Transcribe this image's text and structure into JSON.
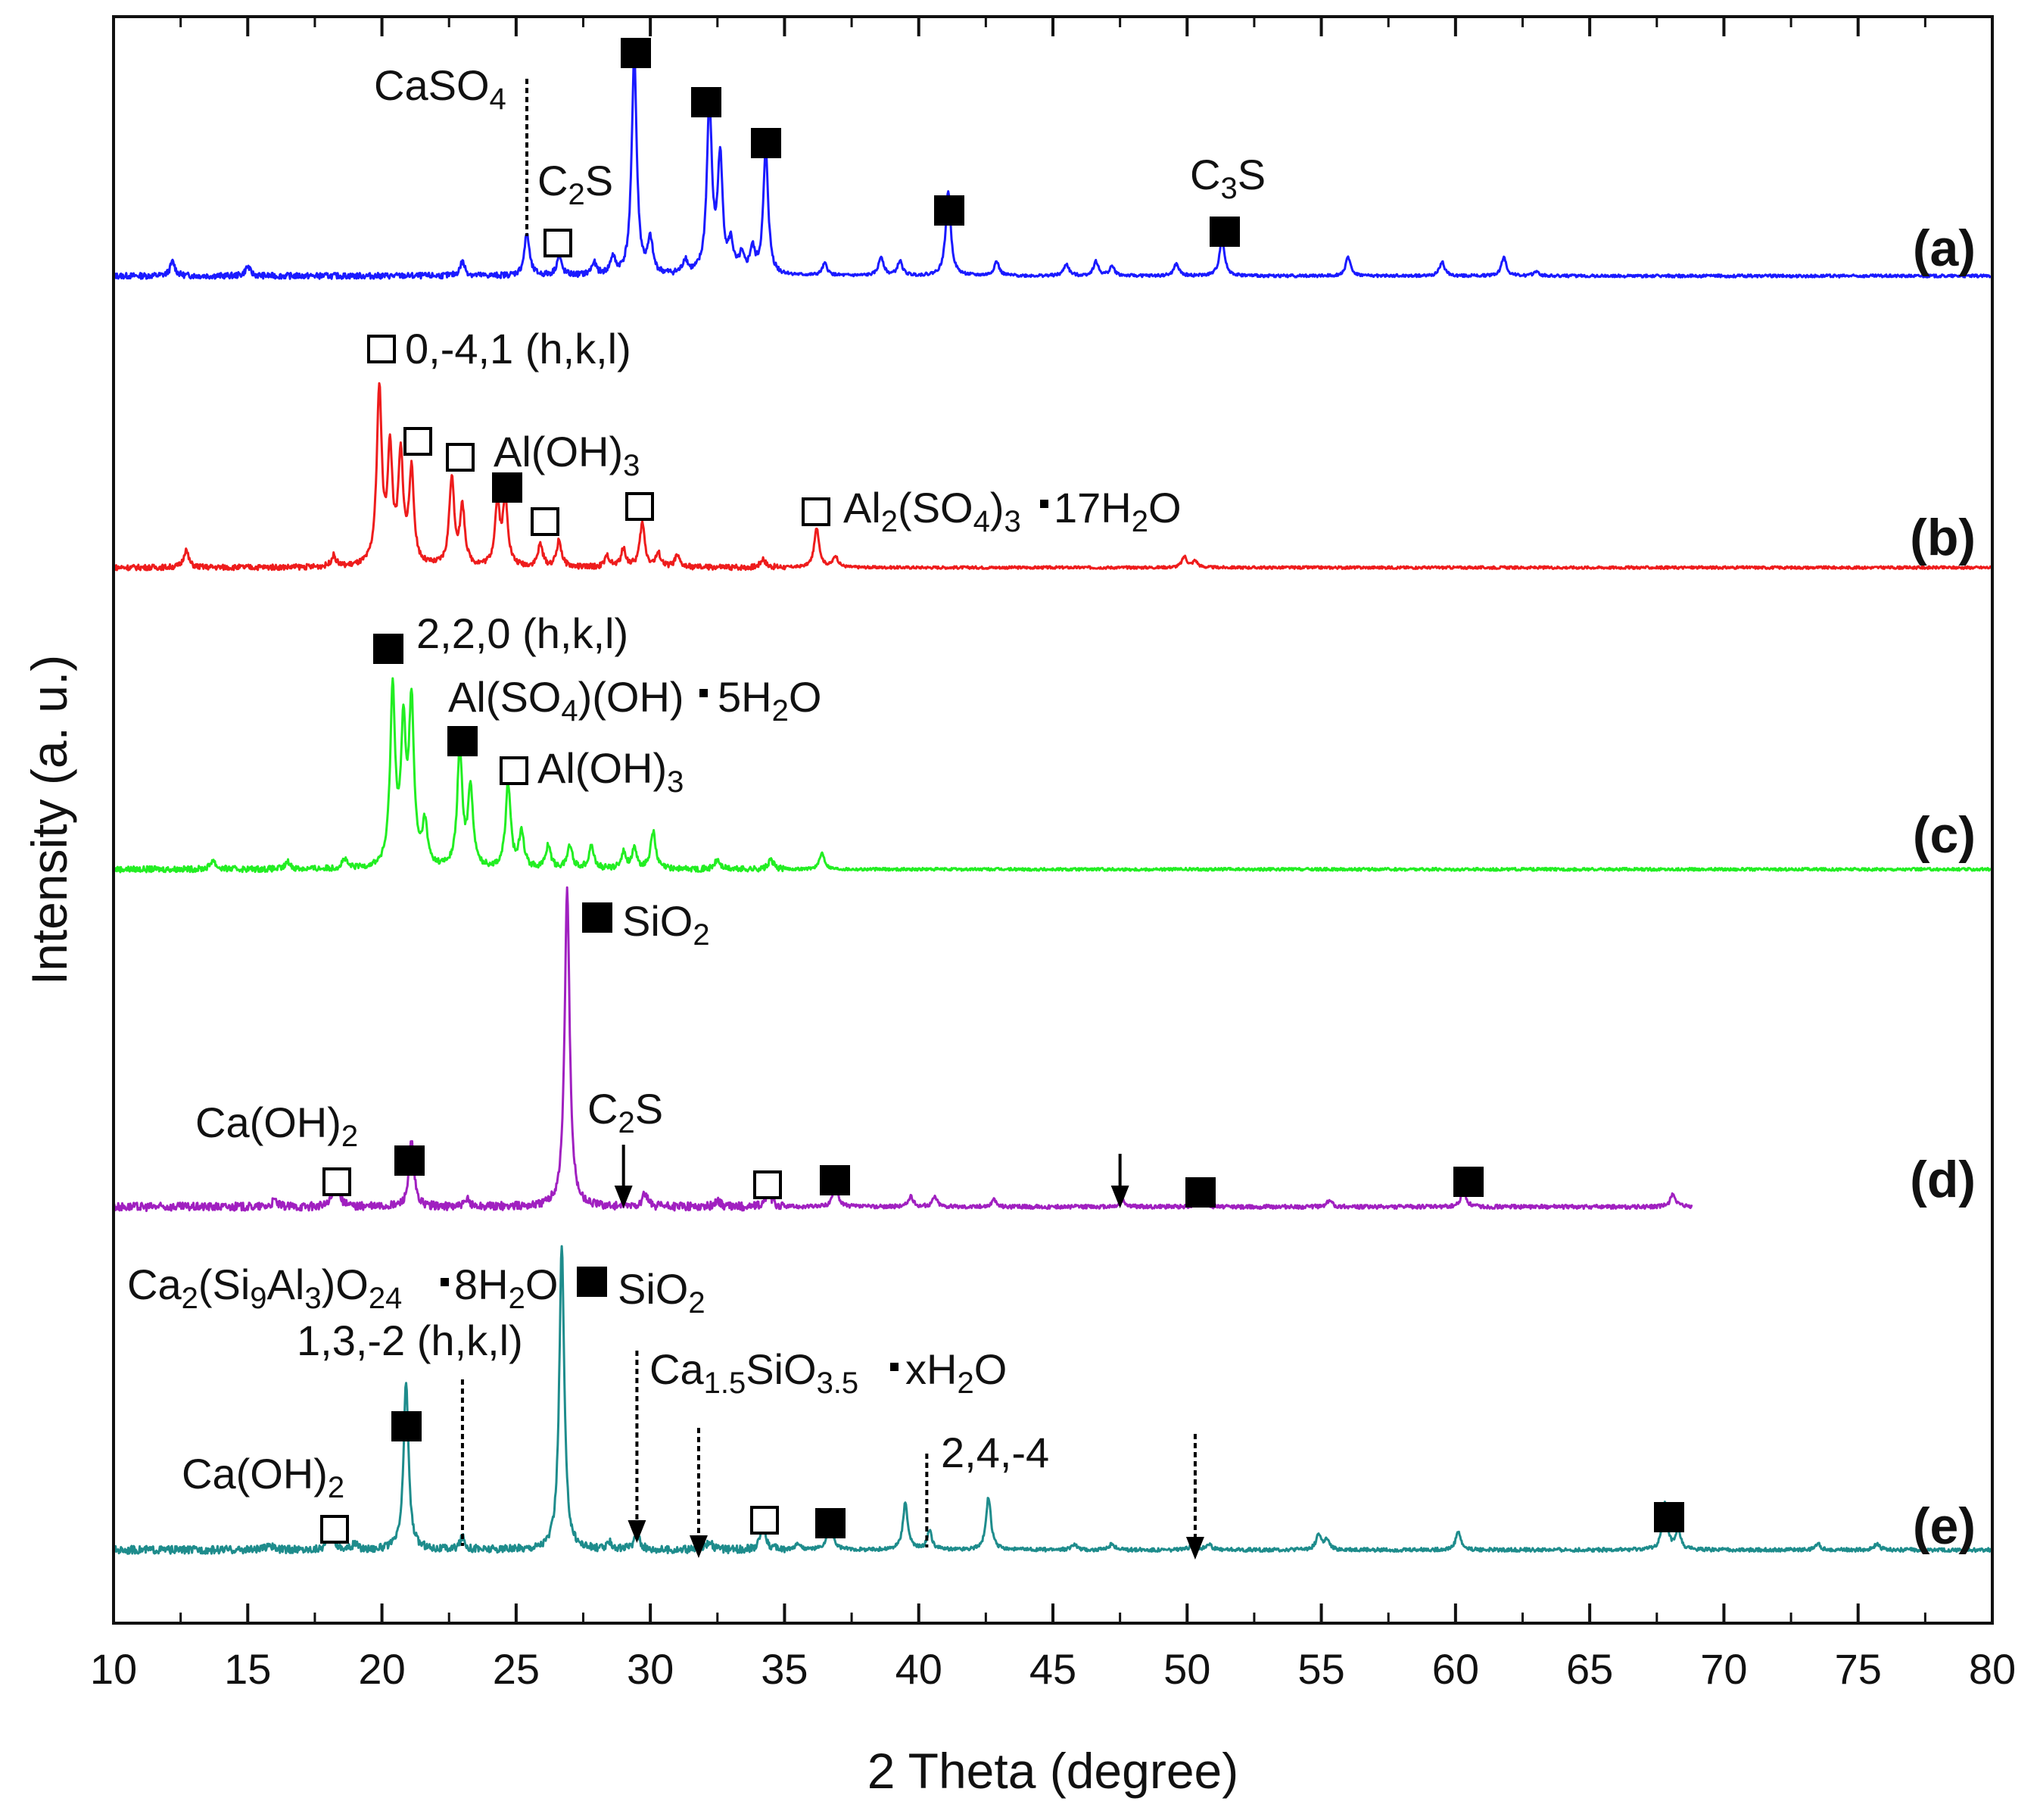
{
  "chart_data": {
    "type": "line",
    "title": "",
    "xlabel": "2 Theta (degree)",
    "ylabel": "Intensity (a. u.)",
    "xlim": [
      10,
      80
    ],
    "xticks": [
      10,
      15,
      20,
      25,
      30,
      35,
      40,
      45,
      50,
      55,
      60,
      65,
      70,
      75,
      80
    ],
    "yticks": [],
    "grid": false,
    "legend": "none",
    "series": [
      {
        "name": "(a)",
        "label": "(a)",
        "color": "#1a1aff",
        "baseline_level": 0.075,
        "end": 80,
        "peaks": [
          [
            12.2,
            0.06
          ],
          [
            15.0,
            0.04
          ],
          [
            23.0,
            0.06
          ],
          [
            25.4,
            0.18
          ],
          [
            26.6,
            0.08
          ],
          [
            27.9,
            0.05
          ],
          [
            28.6,
            0.07
          ],
          [
            29.4,
            0.93
          ],
          [
            30.0,
            0.14
          ],
          [
            31.3,
            0.06
          ],
          [
            32.2,
            0.72
          ],
          [
            32.6,
            0.48
          ],
          [
            33.0,
            0.12
          ],
          [
            33.4,
            0.07
          ],
          [
            33.8,
            0.1
          ],
          [
            34.3,
            0.52
          ],
          [
            36.5,
            0.05
          ],
          [
            38.6,
            0.08
          ],
          [
            39.3,
            0.06
          ],
          [
            41.1,
            0.36
          ],
          [
            42.9,
            0.06
          ],
          [
            45.5,
            0.05
          ],
          [
            46.6,
            0.06
          ],
          [
            47.2,
            0.04
          ],
          [
            49.6,
            0.05
          ],
          [
            51.3,
            0.16
          ],
          [
            56.0,
            0.08
          ],
          [
            59.5,
            0.06
          ],
          [
            61.8,
            0.08
          ],
          [
            63.0,
            0.02
          ]
        ],
        "annotations": [
          {
            "text": "CaSO",
            "sub": "4",
            "x": 25.4
          },
          {
            "text": "C",
            "sub": "2",
            "tail": "S",
            "x": 26.6
          },
          {
            "text": "C",
            "sub": "3",
            "tail": "S",
            "x": 51.3
          }
        ]
      },
      {
        "name": "(b)",
        "label": "(b)",
        "color": "#ee1c1c",
        "baseline_level": 0.07,
        "end": 80,
        "peaks": [
          [
            12.7,
            0.08
          ],
          [
            18.2,
            0.05
          ],
          [
            19.9,
            0.8
          ],
          [
            20.3,
            0.5
          ],
          [
            20.7,
            0.48
          ],
          [
            21.1,
            0.42
          ],
          [
            22.6,
            0.4
          ],
          [
            23.0,
            0.26
          ],
          [
            24.3,
            0.28
          ],
          [
            24.6,
            0.3
          ],
          [
            25.9,
            0.1
          ],
          [
            26.6,
            0.12
          ],
          [
            28.4,
            0.05
          ],
          [
            29.0,
            0.08
          ],
          [
            29.7,
            0.2
          ],
          [
            30.3,
            0.06
          ],
          [
            31.0,
            0.05
          ],
          [
            34.2,
            0.04
          ],
          [
            36.2,
            0.18
          ],
          [
            36.9,
            0.05
          ],
          [
            49.9,
            0.05
          ],
          [
            50.3,
            0.03
          ]
        ],
        "annotations": [
          {
            "text": "0,-4,1 (h,k,l)"
          },
          {
            "text": "Al(OH)",
            "sub": "3"
          },
          {
            "text": "Al",
            "sub": "2",
            "tail": "(SO"
          },
          {
            "text": "4",
            "tail": ")"
          },
          {
            "text": "3",
            "tail": "17H"
          },
          {
            "text": "2",
            "tail": "O"
          }
        ]
      },
      {
        "name": "(c)",
        "label": "(c)",
        "color": "#22ee22",
        "baseline_level": 0.07,
        "end": 80,
        "peaks": [
          [
            13.7,
            0.04
          ],
          [
            16.5,
            0.03
          ],
          [
            18.6,
            0.04
          ],
          [
            20.4,
            0.75
          ],
          [
            20.8,
            0.56
          ],
          [
            21.1,
            0.68
          ],
          [
            21.6,
            0.18
          ],
          [
            22.9,
            0.5
          ],
          [
            23.3,
            0.34
          ],
          [
            24.7,
            0.36
          ],
          [
            25.2,
            0.16
          ],
          [
            26.2,
            0.1
          ],
          [
            27.0,
            0.1
          ],
          [
            27.8,
            0.1
          ],
          [
            29.0,
            0.07
          ],
          [
            29.4,
            0.08
          ],
          [
            30.1,
            0.16
          ],
          [
            32.5,
            0.04
          ],
          [
            34.5,
            0.04
          ],
          [
            36.4,
            0.07
          ]
        ],
        "annotations": [
          {
            "text": "2,2,0 (h,k,l)"
          },
          {
            "text": "Al(SO",
            "sub": "4"
          },
          {
            "text": ")(OH)",
            "tail": "5H"
          },
          {
            "text": "2",
            "tail": "O"
          },
          {
            "text": "Al(OH)",
            "sub": "3"
          }
        ]
      },
      {
        "name": "(d)",
        "label": "(d)",
        "color": "#a020c0",
        "baseline_level": 0.055,
        "end": 68.8,
        "peaks": [
          [
            16.0,
            0.02
          ],
          [
            18.3,
            0.1
          ],
          [
            21.1,
            0.2
          ],
          [
            23.2,
            0.02
          ],
          [
            26.9,
            0.97
          ],
          [
            29.8,
            0.04
          ],
          [
            32.5,
            0.02
          ],
          [
            34.4,
            0.05
          ],
          [
            36.9,
            0.07
          ],
          [
            39.7,
            0.03
          ],
          [
            40.6,
            0.03
          ],
          [
            42.8,
            0.02
          ],
          [
            47.6,
            0.02
          ],
          [
            50.5,
            0.03
          ],
          [
            55.3,
            0.02
          ],
          [
            60.3,
            0.05
          ],
          [
            68.1,
            0.04
          ]
        ],
        "annotations": [
          {
            "text": "SiO",
            "sub": "2"
          },
          {
            "text": "Ca(OH)",
            "sub": "2"
          },
          {
            "text": "C",
            "sub": "2",
            "tail": "S"
          }
        ]
      },
      {
        "name": "(e)",
        "label": "(e)",
        "color": "#1e8c8c",
        "baseline_level": 0.075,
        "end": 80,
        "peaks": [
          [
            15.8,
            0.02
          ],
          [
            18.1,
            0.08
          ],
          [
            19.0,
            0.02
          ],
          [
            20.9,
            0.54
          ],
          [
            23.0,
            0.04
          ],
          [
            26.7,
            0.98
          ],
          [
            28.5,
            0.02
          ],
          [
            29.5,
            0.06
          ],
          [
            32.2,
            0.03
          ],
          [
            34.2,
            0.09
          ],
          [
            35.5,
            0.02
          ],
          [
            36.7,
            0.1
          ],
          [
            39.5,
            0.15
          ],
          [
            40.4,
            0.06
          ],
          [
            42.6,
            0.17
          ],
          [
            45.8,
            0.02
          ],
          [
            47.2,
            0.02
          ],
          [
            50.2,
            0.02
          ],
          [
            50.8,
            0.02
          ],
          [
            54.9,
            0.05
          ],
          [
            55.2,
            0.03
          ],
          [
            60.1,
            0.06
          ],
          [
            67.8,
            0.15
          ],
          [
            68.3,
            0.06
          ],
          [
            73.5,
            0.02
          ],
          [
            75.7,
            0.02
          ]
        ],
        "annotations": [
          {
            "text": "Ca",
            "sub": "2",
            "tail": "(Si"
          },
          {
            "text": "9",
            "tail": "Al"
          },
          {
            "text": "3",
            "tail": ")O"
          },
          {
            "text": "24",
            "tail": "8H"
          },
          {
            "text": "2",
            "tail": "O"
          },
          {
            "text": "SiO",
            "sub": "2"
          },
          {
            "text": "1,3,-2 (h,k,l)"
          },
          {
            "text": "Ca",
            "sub": "1.5",
            "tail": "SiO"
          },
          {
            "text": "3.5",
            "tail": "xH"
          },
          {
            "text": "2",
            "tail": "O"
          },
          {
            "text": "2,4,-4"
          },
          {
            "text": "Ca(OH)",
            "sub": "2"
          }
        ]
      }
    ]
  }
}
